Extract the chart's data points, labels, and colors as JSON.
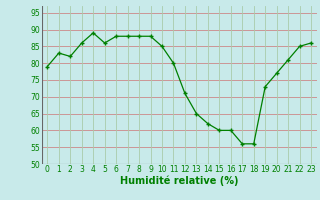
{
  "x": [
    0,
    1,
    2,
    3,
    4,
    5,
    6,
    7,
    8,
    9,
    10,
    11,
    12,
    13,
    14,
    15,
    16,
    17,
    18,
    19,
    20,
    21,
    22,
    23
  ],
  "y": [
    79,
    83,
    82,
    86,
    89,
    86,
    88,
    88,
    88,
    88,
    85,
    80,
    71,
    65,
    62,
    60,
    60,
    56,
    56,
    73,
    77,
    81,
    85,
    86
  ],
  "line_color": "#008000",
  "marker_color": "#008000",
  "bg_color": "#c8eaea",
  "grid_color_h": "#cc8888",
  "grid_color_v": "#aaccaa",
  "xlabel": "Humidité relative (%)",
  "xlabel_color": "#008000",
  "ylim": [
    50,
    97
  ],
  "xlim": [
    -0.5,
    23.5
  ],
  "yticks": [
    50,
    55,
    60,
    65,
    70,
    75,
    80,
    85,
    90,
    95
  ],
  "xticks": [
    0,
    1,
    2,
    3,
    4,
    5,
    6,
    7,
    8,
    9,
    10,
    11,
    12,
    13,
    14,
    15,
    16,
    17,
    18,
    19,
    20,
    21,
    22,
    23
  ],
  "tick_fontsize": 5.5,
  "label_fontsize": 7.0
}
